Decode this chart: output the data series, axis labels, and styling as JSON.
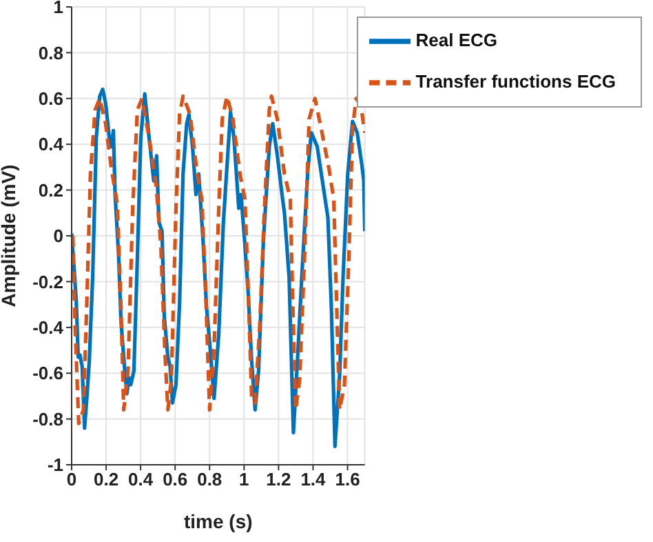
{
  "chart_data": {
    "type": "line",
    "xlabel": "time (s)",
    "ylabel": "Amplitude (mV)",
    "xlim": [
      0,
      1.7
    ],
    "ylim": [
      -1,
      1
    ],
    "xticks": [
      0,
      0.2,
      0.4,
      0.6,
      0.8,
      1,
      1.2,
      1.4,
      1.6
    ],
    "yticks": [
      -1,
      -0.8,
      -0.6,
      -0.4,
      -0.2,
      0,
      0.2,
      0.4,
      0.6,
      0.8,
      1
    ],
    "grid": true,
    "legend": "top right",
    "marker": "none",
    "series": [
      {
        "name": "Real ECG",
        "color": "#0072bd",
        "line_style": "solid",
        "x": [
          0,
          0.014,
          0.027,
          0.038,
          0.048,
          0.061,
          0.075,
          0.088,
          0.102,
          0.122,
          0.143,
          0.163,
          0.18,
          0.197,
          0.218,
          0.231,
          0.242,
          0.252,
          0.272,
          0.286,
          0.306,
          0.32,
          0.333,
          0.343,
          0.361,
          0.381,
          0.401,
          0.424,
          0.449,
          0.476,
          0.493,
          0.506,
          0.524,
          0.537,
          0.558,
          0.571,
          0.585,
          0.605,
          0.626,
          0.646,
          0.667,
          0.68,
          0.701,
          0.721,
          0.737,
          0.762,
          0.782,
          0.803,
          0.826,
          0.853,
          0.88,
          0.921,
          0.941,
          0.969,
          0.982,
          1.003,
          1.023,
          1.044,
          1.064,
          1.084,
          1.112,
          1.146,
          1.166,
          1.193,
          1.22,
          1.234,
          1.261,
          1.286,
          1.309,
          1.336,
          1.37,
          1.39,
          1.424,
          1.458,
          1.486,
          1.506,
          1.527,
          1.554,
          1.574,
          1.601,
          1.629,
          1.656,
          1.683,
          1.694,
          1.7
        ],
        "values": [
          0.01,
          -0.14,
          -0.29,
          -0.53,
          -0.52,
          -0.57,
          -0.84,
          -0.71,
          -0.55,
          -0.18,
          0.43,
          0.61,
          0.64,
          0.58,
          0.43,
          0.39,
          0.46,
          0.18,
          -0.08,
          -0.37,
          -0.57,
          -0.69,
          -0.62,
          -0.65,
          -0.59,
          -0.1,
          0.43,
          0.62,
          0.43,
          0.24,
          0.35,
          0.06,
          0.02,
          -0.35,
          -0.53,
          -0.57,
          -0.73,
          -0.65,
          -0.29,
          0.27,
          0.49,
          0.53,
          0.39,
          0.18,
          0.27,
          -0.02,
          -0.31,
          -0.49,
          -0.71,
          -0.43,
          0.06,
          0.54,
          0.43,
          0.12,
          0.18,
          -0.02,
          -0.24,
          -0.55,
          -0.76,
          -0.59,
          -0.02,
          0.39,
          0.49,
          0.35,
          0.18,
          0.1,
          -0.18,
          -0.86,
          -0.55,
          -0.16,
          0.29,
          0.45,
          0.39,
          0.22,
          0.08,
          -0.31,
          -0.92,
          -0.61,
          -0.18,
          0.27,
          0.5,
          0.45,
          0.31,
          0.24,
          0.02
        ]
      },
      {
        "name": "Transfer functions ECG",
        "color": "#d95319",
        "line_style": "dashed",
        "x": [
          0.007,
          0.02,
          0.041,
          0.068,
          0.088,
          0.109,
          0.136,
          0.163,
          0.197,
          0.231,
          0.265,
          0.286,
          0.302,
          0.327,
          0.354,
          0.381,
          0.408,
          0.449,
          0.49,
          0.517,
          0.541,
          0.558,
          0.578,
          0.605,
          0.626,
          0.646,
          0.687,
          0.728,
          0.755,
          0.776,
          0.8,
          0.826,
          0.853,
          0.873,
          0.901,
          0.935,
          0.976,
          1.005,
          1.023,
          1.044,
          1.064,
          1.091,
          1.118,
          1.146,
          1.159,
          1.193,
          1.234,
          1.268,
          1.282,
          1.299,
          1.322,
          1.35,
          1.377,
          1.411,
          1.452,
          1.493,
          1.52,
          1.54,
          1.554,
          1.582,
          1.608,
          1.629,
          1.65,
          1.677,
          1.7
        ],
        "values": [
          0,
          -0.39,
          -0.82,
          -0.76,
          -0.29,
          0.27,
          0.55,
          0.6,
          0.49,
          0.29,
          0.14,
          -0.31,
          -0.76,
          -0.59,
          0.12,
          0.55,
          0.6,
          0.43,
          0.22,
          -0.04,
          -0.51,
          -0.76,
          -0.63,
          0.12,
          0.53,
          0.61,
          0.53,
          0.27,
          0.16,
          -0.22,
          -0.76,
          -0.49,
          0.12,
          0.51,
          0.61,
          0.51,
          0.27,
          0.16,
          -0.22,
          -0.71,
          -0.73,
          -0.39,
          0.12,
          0.55,
          0.61,
          0.51,
          0.27,
          0.16,
          -0.29,
          -0.76,
          -0.63,
          -0.1,
          0.51,
          0.6,
          0.45,
          0.29,
          0.16,
          -0.39,
          -0.76,
          -0.65,
          -0.08,
          0.47,
          0.6,
          0.57,
          0.45
        ]
      }
    ]
  }
}
